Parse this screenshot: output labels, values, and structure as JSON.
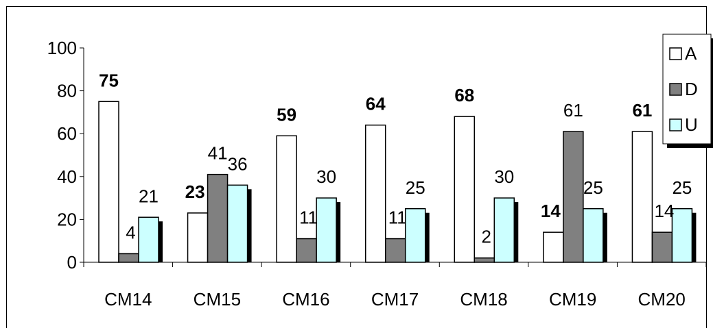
{
  "chart_data": {
    "type": "bar",
    "categories": [
      "CM14",
      "CM15",
      "CM16",
      "CM17",
      "CM18",
      "CM19",
      "CM20"
    ],
    "series": [
      {
        "name": "A",
        "values": [
          75,
          23,
          59,
          64,
          68,
          14,
          61
        ],
        "color": "#ffffff",
        "label_bold": true
      },
      {
        "name": "D",
        "values": [
          4,
          41,
          11,
          11,
          2,
          61,
          14
        ],
        "color": "#808080",
        "label_bold": false
      },
      {
        "name": "U",
        "values": [
          21,
          36,
          30,
          25,
          30,
          25,
          25
        ],
        "color": "#ccffff",
        "label_bold": false
      }
    ],
    "ylim": [
      0,
      100
    ],
    "yticks": [
      0,
      20,
      40,
      60,
      80,
      100
    ],
    "ytick_labels": [
      "0",
      "20",
      "40",
      "60",
      "80",
      "100"
    ],
    "legend": "top-right",
    "grid": false,
    "shadow_color": "#000000",
    "border_color": "#000000",
    "title": "",
    "xlabel": "",
    "ylabel": ""
  }
}
